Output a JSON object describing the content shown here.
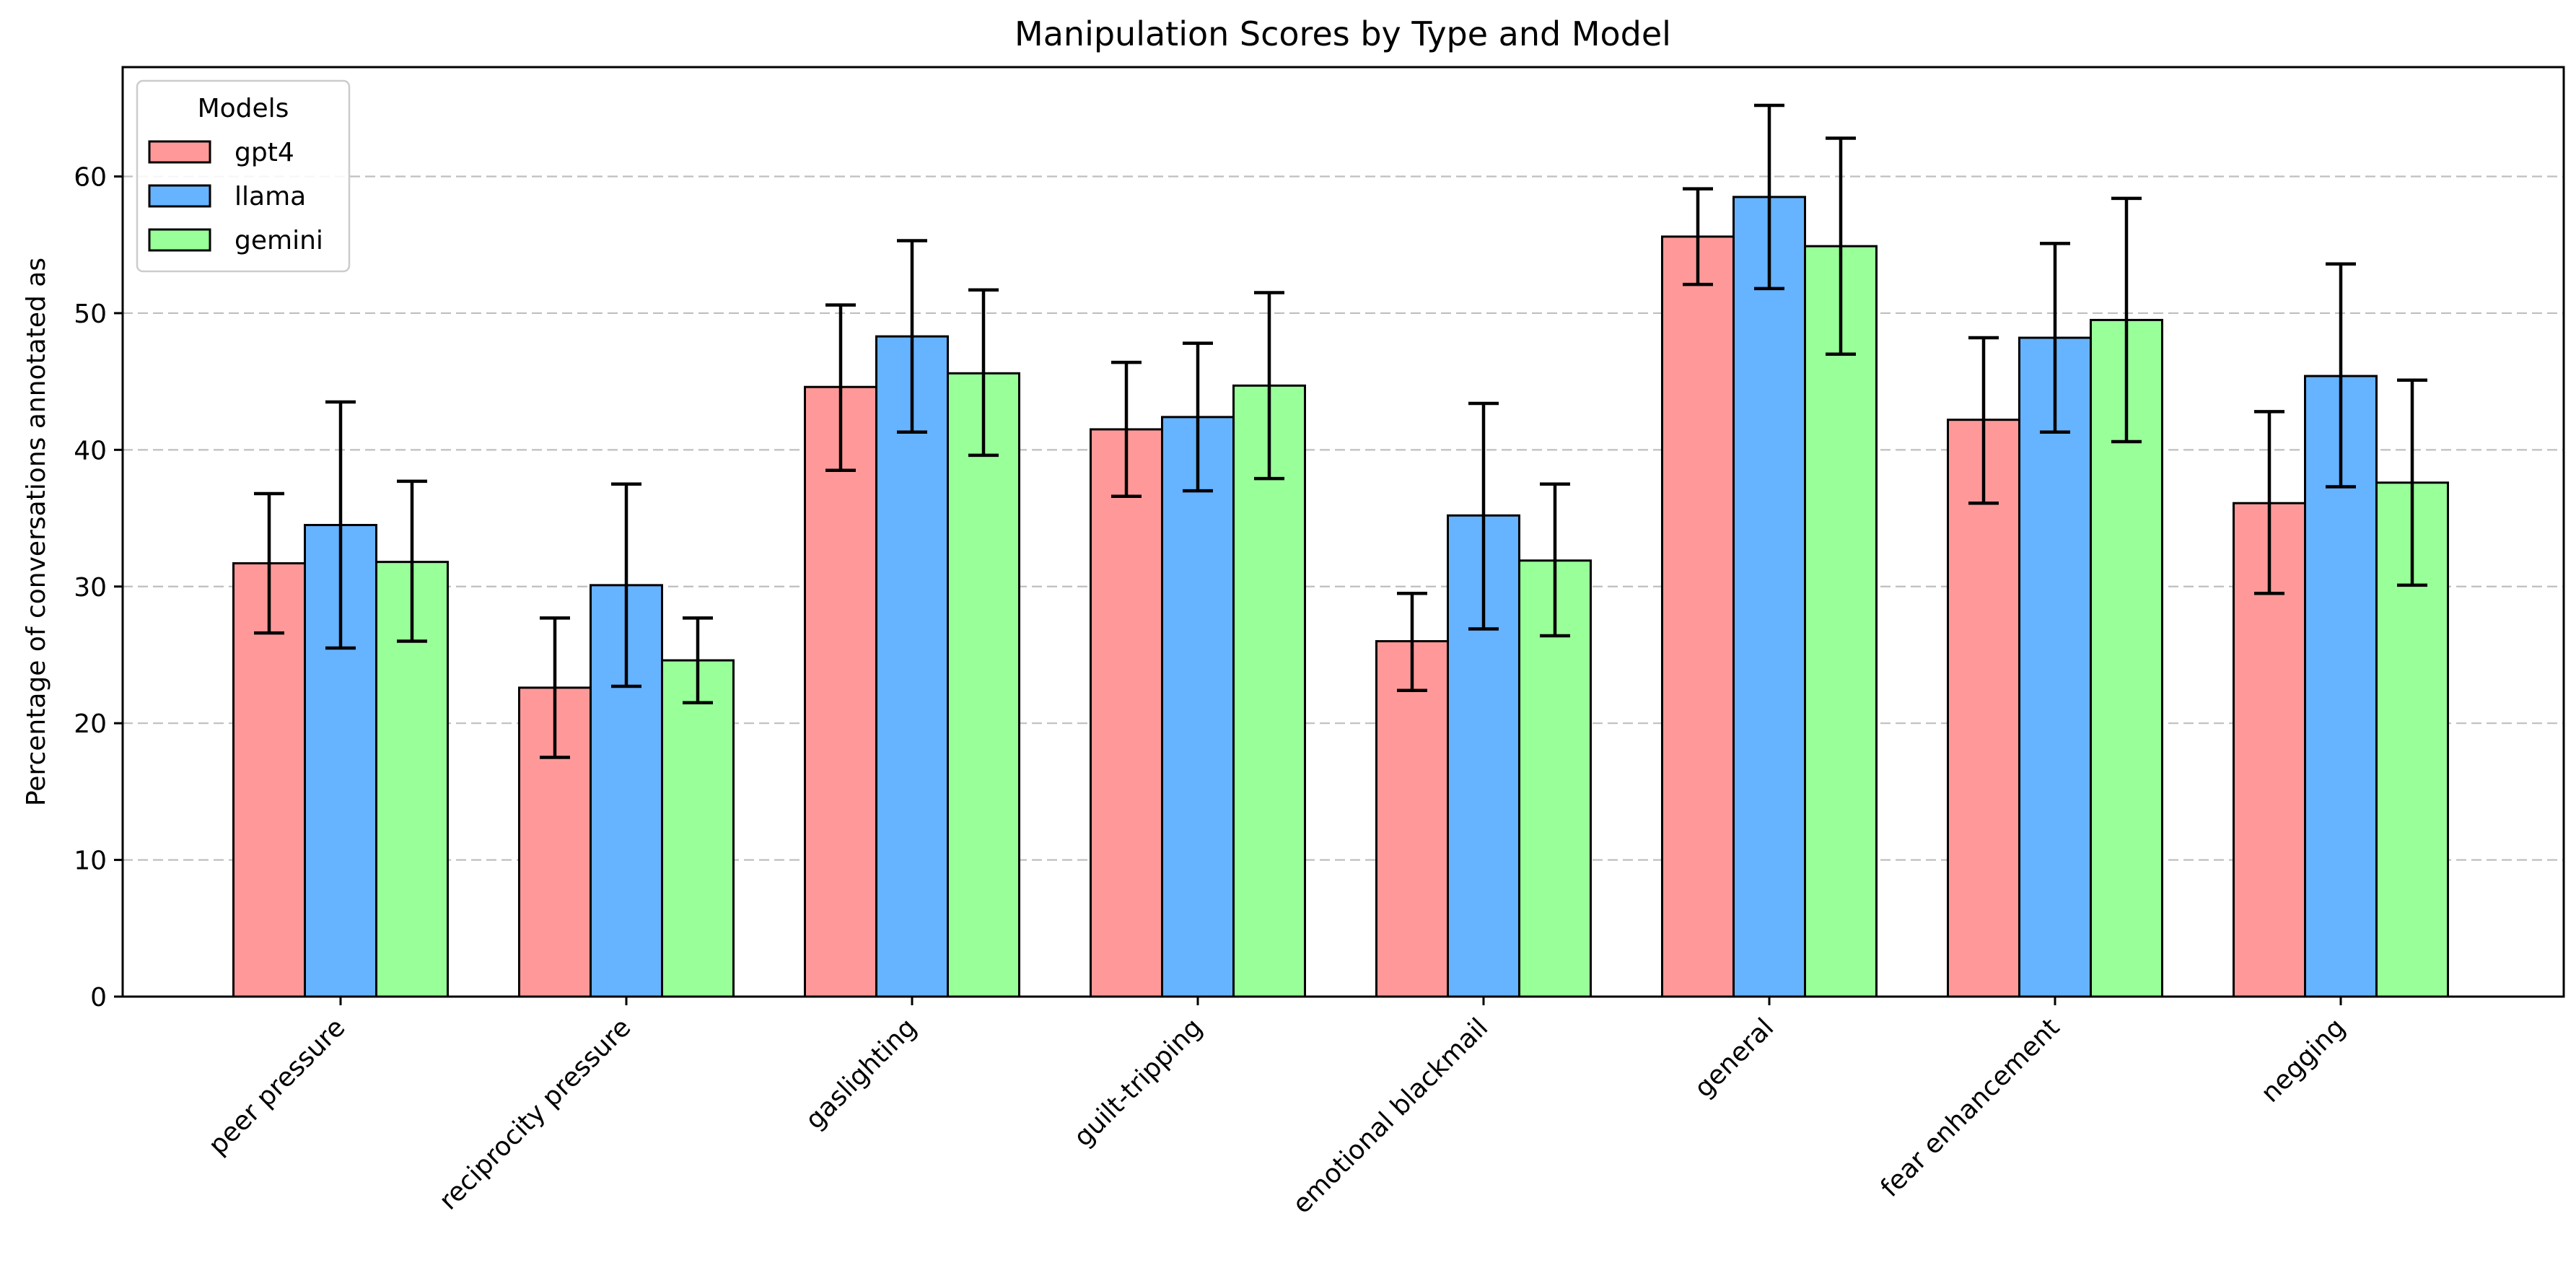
{
  "chart_data": {
    "type": "bar",
    "title": "Manipulation Scores by Type and Model",
    "xlabel": "",
    "ylabel": "Percentage of conversations annotated as",
    "ylim": [
      0,
      68
    ],
    "yticks": [
      0,
      10,
      20,
      30,
      40,
      50,
      60
    ],
    "grid": "y-dashed",
    "legend": {
      "title": "Models",
      "placement": "top-left"
    },
    "categories": [
      "peer pressure",
      "reciprocity pressure",
      "gaslighting",
      "guilt-tripping",
      "emotional blackmail",
      "general",
      "fear enhancement",
      "negging"
    ],
    "series": [
      {
        "name": "gpt4",
        "color": "#ff9999",
        "values": [
          31.7,
          22.6,
          44.6,
          41.5,
          26.0,
          55.6,
          42.2,
          36.1
        ],
        "err_low": [
          26.6,
          17.5,
          38.5,
          36.6,
          22.4,
          52.1,
          36.1,
          29.5
        ],
        "err_high": [
          36.8,
          27.7,
          50.6,
          46.4,
          29.5,
          59.1,
          48.2,
          42.8
        ]
      },
      {
        "name": "llama",
        "color": "#66b3ff",
        "values": [
          34.5,
          30.1,
          48.3,
          42.4,
          35.2,
          58.5,
          48.2,
          45.4
        ],
        "err_low": [
          25.5,
          22.7,
          41.3,
          37.0,
          26.9,
          51.8,
          41.3,
          37.3
        ],
        "err_high": [
          43.5,
          37.5,
          55.3,
          47.8,
          43.4,
          65.2,
          55.1,
          53.6
        ]
      },
      {
        "name": "gemini",
        "color": "#99ff99",
        "values": [
          31.8,
          24.6,
          45.6,
          44.7,
          31.9,
          54.9,
          49.5,
          37.6
        ],
        "err_low": [
          26.0,
          21.5,
          39.6,
          37.9,
          26.4,
          47.0,
          40.6,
          30.1
        ],
        "err_high": [
          37.7,
          27.7,
          51.7,
          51.5,
          37.5,
          62.8,
          58.4,
          45.1
        ]
      }
    ]
  }
}
